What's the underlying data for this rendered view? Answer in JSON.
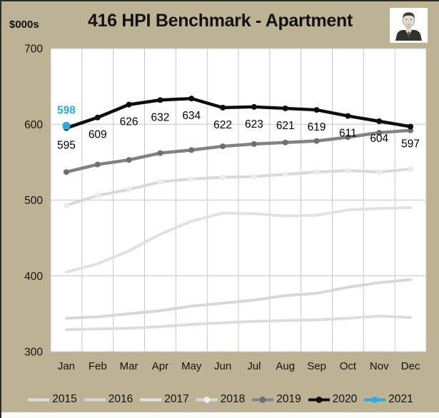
{
  "header": {
    "units_label": "$000s",
    "title": "416 HPI Benchmark - Apartment",
    "avatar": "portrait-of-man-in-suit"
  },
  "colors": {
    "background": "#BDB294",
    "plot_background": "#FFFFFF",
    "gridline": "#C7C7C7",
    "text": "#121212",
    "accent_2021": "#29ABE2",
    "series_2020": "#0D0D0D",
    "series_2019": "#828282"
  },
  "chart_data": {
    "type": "line",
    "title": "416 HPI Benchmark - Apartment",
    "ylabel": "$000s",
    "xlabel": "",
    "ylim": [
      300,
      700
    ],
    "yticks": [
      700,
      600,
      500,
      400,
      300
    ],
    "grid": "horizontal major lines + vertical category boundary lines",
    "legend_position": "bottom",
    "categories": [
      "Jan",
      "Feb",
      "Mar",
      "Apr",
      "May",
      "Jun",
      "Jul",
      "Aug",
      "Sep",
      "Oct",
      "Nov",
      "Dec"
    ],
    "series": [
      {
        "name": "2015",
        "color": "#DCDCDC",
        "line_width": 4,
        "marker": false,
        "values": [
          329,
          330,
          331,
          333,
          336,
          338,
          340,
          341,
          342,
          344,
          347,
          345
        ]
      },
      {
        "name": "2016",
        "color": "#D7D7D7",
        "line_width": 4,
        "marker": false,
        "values": [
          344,
          346,
          350,
          354,
          360,
          364,
          368,
          374,
          377,
          385,
          391,
          395
        ]
      },
      {
        "name": "2017",
        "color": "#E2E2E2",
        "line_width": 4,
        "marker": false,
        "values": [
          405,
          416,
          433,
          455,
          472,
          483,
          482,
          479,
          480,
          487,
          489,
          490
        ]
      },
      {
        "name": "2018",
        "color": "#D9D9D9",
        "marker_color": "#ECECEC",
        "line_width": 4,
        "marker": true,
        "values": [
          493,
          506,
          514,
          524,
          528,
          530,
          531,
          534,
          537,
          539,
          537,
          541
        ]
      },
      {
        "name": "2019",
        "color": "#828282",
        "marker_color": "#6F6F6F",
        "line_width": 4.5,
        "marker": true,
        "values": [
          537,
          547,
          553,
          562,
          566,
          571,
          574,
          576,
          578,
          583,
          589,
          592
        ]
      },
      {
        "name": "2020",
        "color": "#0D0D0D",
        "line_width": 4.5,
        "marker": true,
        "data_labels": true,
        "label_color": "#000000",
        "label_position": "below",
        "label_bold": false,
        "values": [
          595,
          609,
          626,
          632,
          634,
          622,
          623,
          621,
          619,
          611,
          604,
          597
        ]
      },
      {
        "name": "2021",
        "color": "#29ABE2",
        "line_width": 4.5,
        "marker": true,
        "data_labels": true,
        "label_color": "#29ABE2",
        "label_position": "above",
        "label_bold": true,
        "values": [
          598
        ]
      }
    ]
  }
}
